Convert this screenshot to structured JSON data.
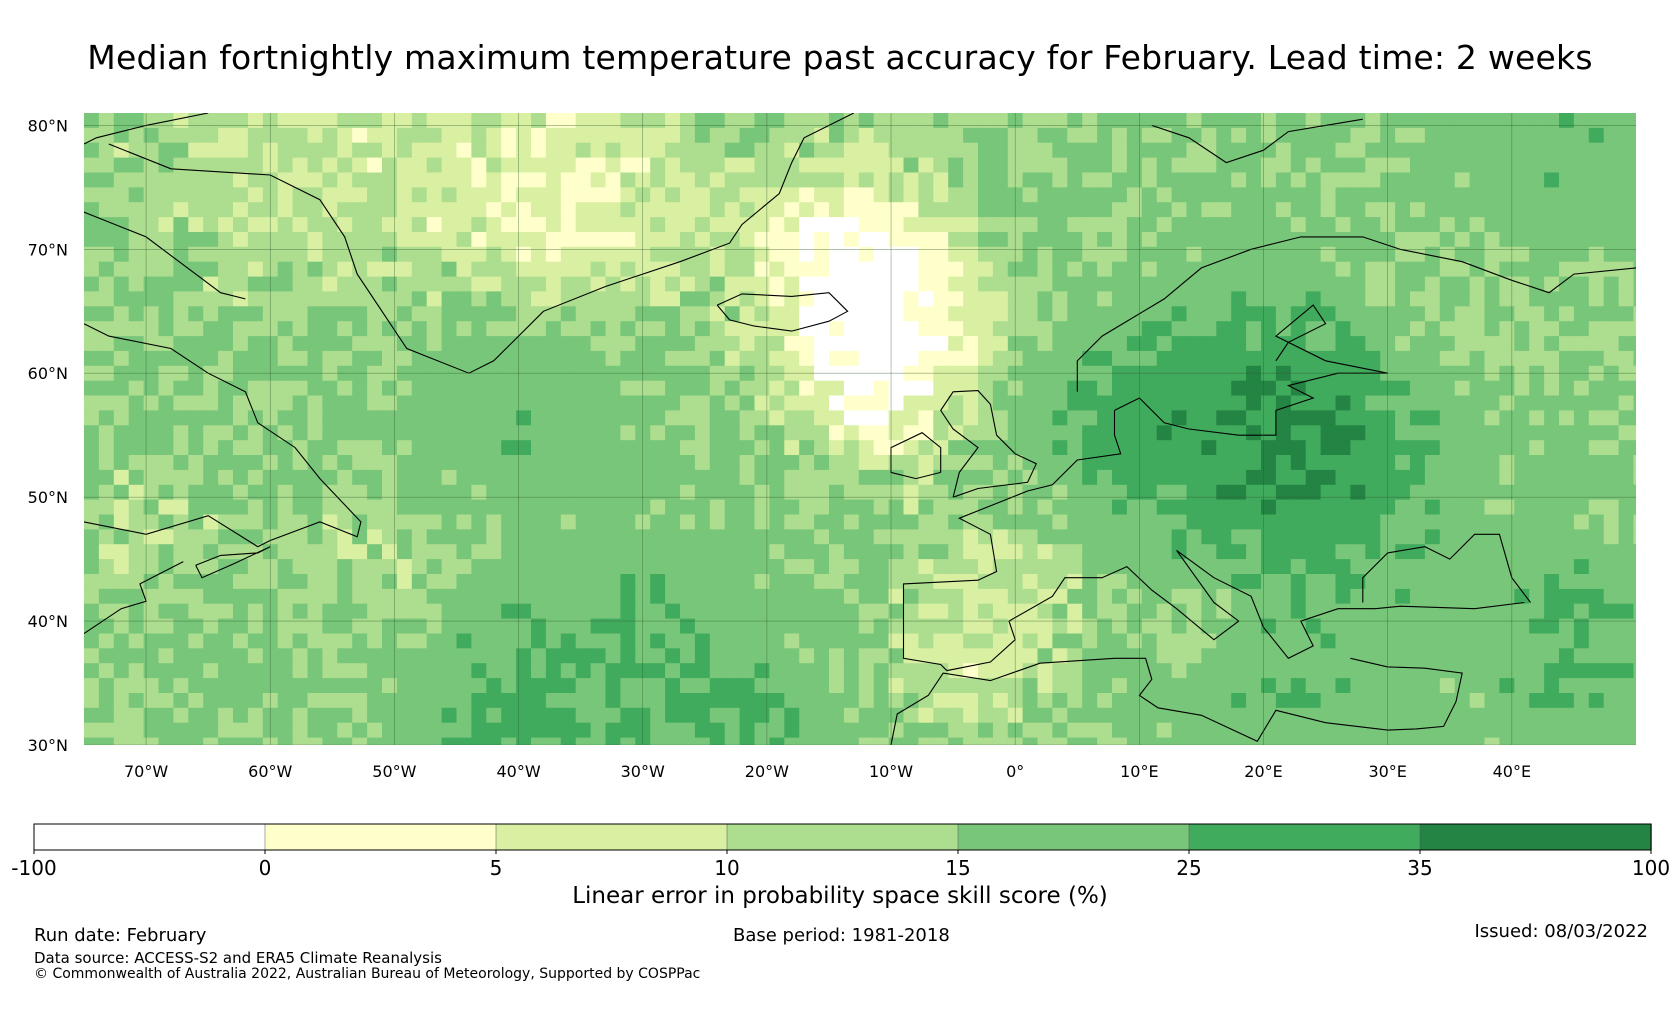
{
  "title": "Median fortnightly maximum temperature past accuracy for February. Lead time: 2 weeks",
  "map": {
    "region": "North Atlantic and Europe",
    "lat_range": [
      30,
      81
    ],
    "lon_range": [
      -75,
      50
    ],
    "lat_ticks": [
      {
        "value": 80,
        "label": "80°N"
      },
      {
        "value": 70,
        "label": "70°N"
      },
      {
        "value": 60,
        "label": "60°N"
      },
      {
        "value": 50,
        "label": "50°N"
      },
      {
        "value": 40,
        "label": "40°N"
      },
      {
        "value": 30,
        "label": "30°N"
      }
    ],
    "lon_ticks": [
      {
        "value": -70,
        "label": "70°W"
      },
      {
        "value": -60,
        "label": "60°W"
      },
      {
        "value": -50,
        "label": "50°W"
      },
      {
        "value": -40,
        "label": "40°W"
      },
      {
        "value": -30,
        "label": "30°W"
      },
      {
        "value": -20,
        "label": "20°W"
      },
      {
        "value": -10,
        "label": "10°W"
      },
      {
        "value": 0,
        "label": "0°"
      },
      {
        "value": 10,
        "label": "10°E"
      },
      {
        "value": 20,
        "label": "20°E"
      },
      {
        "value": 30,
        "label": "30°E"
      },
      {
        "value": 40,
        "label": "40°E"
      }
    ]
  },
  "colorbar": {
    "label": "Linear error in probability space skill score (%)",
    "bins": [
      {
        "from": -100,
        "to": 0,
        "color": "#ffffff"
      },
      {
        "from": 0,
        "to": 5,
        "color": "#ffffcc"
      },
      {
        "from": 5,
        "to": 10,
        "color": "#d9f0a3"
      },
      {
        "from": 10,
        "to": 15,
        "color": "#addd8e"
      },
      {
        "from": 15,
        "to": 25,
        "color": "#78c679"
      },
      {
        "from": 25,
        "to": 35,
        "color": "#41ab5d"
      },
      {
        "from": 35,
        "to": 100,
        "color": "#238443"
      }
    ],
    "tick_labels": [
      "-100",
      "0",
      "5",
      "10",
      "15",
      "25",
      "35",
      "100"
    ]
  },
  "footer": {
    "run_date": "Run date: February",
    "base_period": "Base period: 1981-2018",
    "issued": "Issued: 08/03/2022",
    "data_source": "Data source: ACCESS-S2 and ERA5 Climate Reanalysis",
    "copyright": "© Commonwealth of Australia 2022, Australian Bureau of Meteorology, Supported by COSPPac"
  },
  "colors": {
    "coastline": "#000000",
    "gridline": "#2d5a2d"
  }
}
